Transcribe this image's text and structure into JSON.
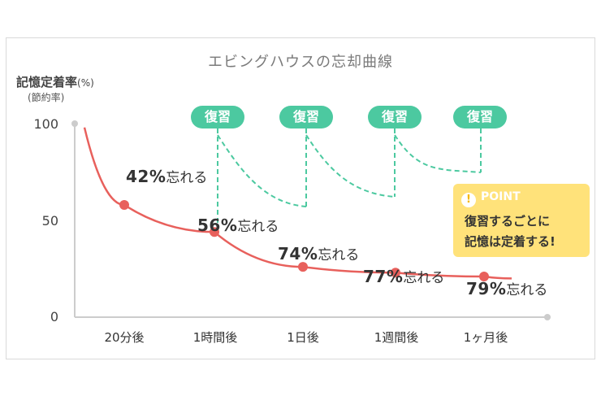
{
  "chart_data": {
    "type": "line",
    "title": "エビングハウスの忘却曲線",
    "ylabel": "記憶定着率",
    "ylabel_unit": "(%)",
    "ylabel_sub": "(節約率)",
    "ylim": [
      0,
      100
    ],
    "yticks": [
      "100",
      "50",
      "0"
    ],
    "categories": [
      "20分後",
      "1時間後",
      "1日後",
      "1週間後",
      "1ヶ月後"
    ],
    "values": [
      58,
      44,
      26,
      23,
      21
    ],
    "annotations": [
      {
        "pct": "42%",
        "text": "忘れる"
      },
      {
        "pct": "56%",
        "text": "忘れる"
      },
      {
        "pct": "74%",
        "text": "忘れる"
      },
      {
        "pct": "77%",
        "text": "忘れる"
      },
      {
        "pct": "79%",
        "text": "忘れる"
      }
    ],
    "review_label": "復習",
    "review_count": 4
  },
  "point": {
    "heading": "POINT",
    "icon": "exclamation-icon",
    "line1": "復習するごとに",
    "line2": "記憶は定着する!"
  },
  "colors": {
    "curve": "#e8605c",
    "review": "#4cc9a0",
    "point_bg": "#ffe27a",
    "axis": "#cccccc"
  }
}
